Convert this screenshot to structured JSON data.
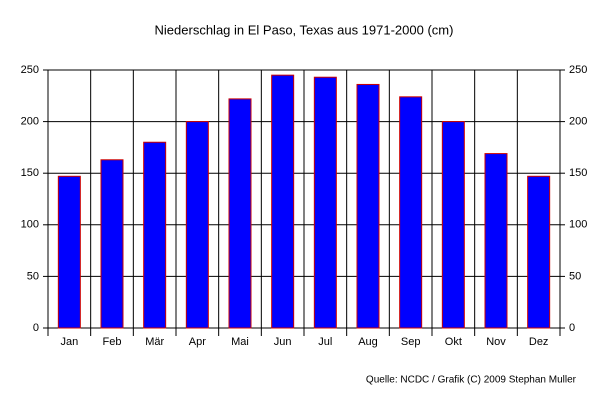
{
  "chart_data": {
    "type": "bar",
    "title": "Niederschlag in El Paso, Texas aus 1971-2000 (cm)",
    "categories": [
      "Jan",
      "Feb",
      "Mär",
      "Apr",
      "Mai",
      "Jun",
      "Jul",
      "Aug",
      "Sep",
      "Okt",
      "Nov",
      "Dez"
    ],
    "values": [
      147,
      163,
      180,
      200,
      222,
      245,
      243,
      236,
      224,
      200,
      169,
      147
    ],
    "color": "#0000ff",
    "edge_color": "#cc0000",
    "ylim": [
      0,
      250
    ],
    "yticks": [
      0,
      50,
      100,
      150,
      200,
      250
    ],
    "y2lim": [
      0,
      250
    ],
    "y2ticks": [
      0,
      50,
      100,
      150,
      200,
      250
    ],
    "grid": true,
    "source": "Quelle: NCDC / Grafik (C) 2009 Stephan Muller"
  }
}
